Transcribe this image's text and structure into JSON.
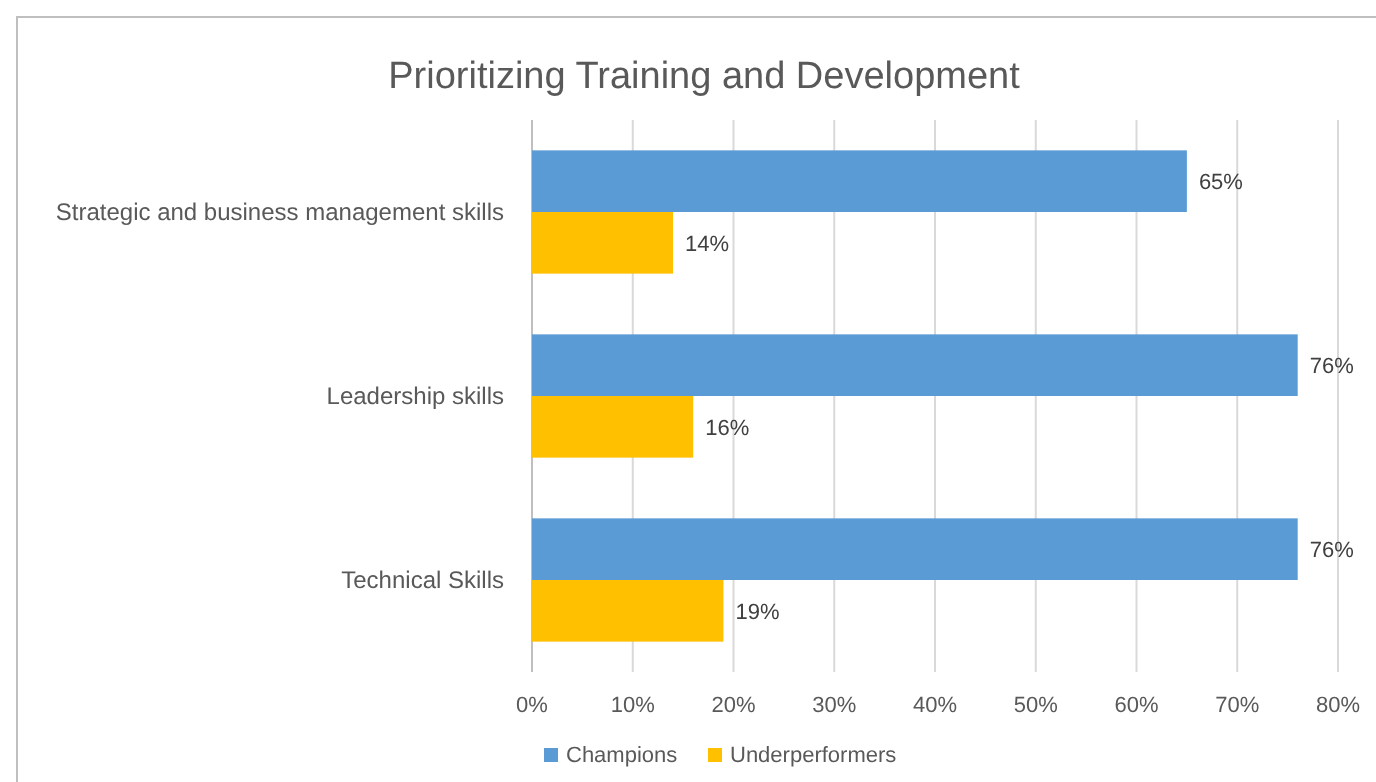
{
  "chart_data": {
    "type": "bar",
    "orientation": "horizontal",
    "title": "Prioritizing Training and Development",
    "categories": [
      "Strategic and business management skills",
      "Leadership skills",
      "Technical Skills"
    ],
    "series": [
      {
        "name": "Champions",
        "color": "#5b9bd5",
        "values": [
          65,
          76,
          76
        ],
        "value_labels": [
          "65%",
          "76%",
          "76%"
        ]
      },
      {
        "name": "Underperformers",
        "color": "#ffc000",
        "values": [
          14,
          16,
          19
        ],
        "value_labels": [
          "14%",
          "16%",
          "19%"
        ]
      }
    ],
    "xlim": [
      0,
      80
    ],
    "xticks": [
      {
        "value": 0,
        "label": "0%"
      },
      {
        "value": 10,
        "label": "10%"
      },
      {
        "value": 20,
        "label": "20%"
      },
      {
        "value": 30,
        "label": "30%"
      },
      {
        "value": 40,
        "label": "40%"
      },
      {
        "value": 50,
        "label": "50%"
      },
      {
        "value": 60,
        "label": "60%"
      },
      {
        "value": 70,
        "label": "70%"
      },
      {
        "value": 80,
        "label": "80%"
      }
    ],
    "grid": "x",
    "legend": "bottom"
  }
}
